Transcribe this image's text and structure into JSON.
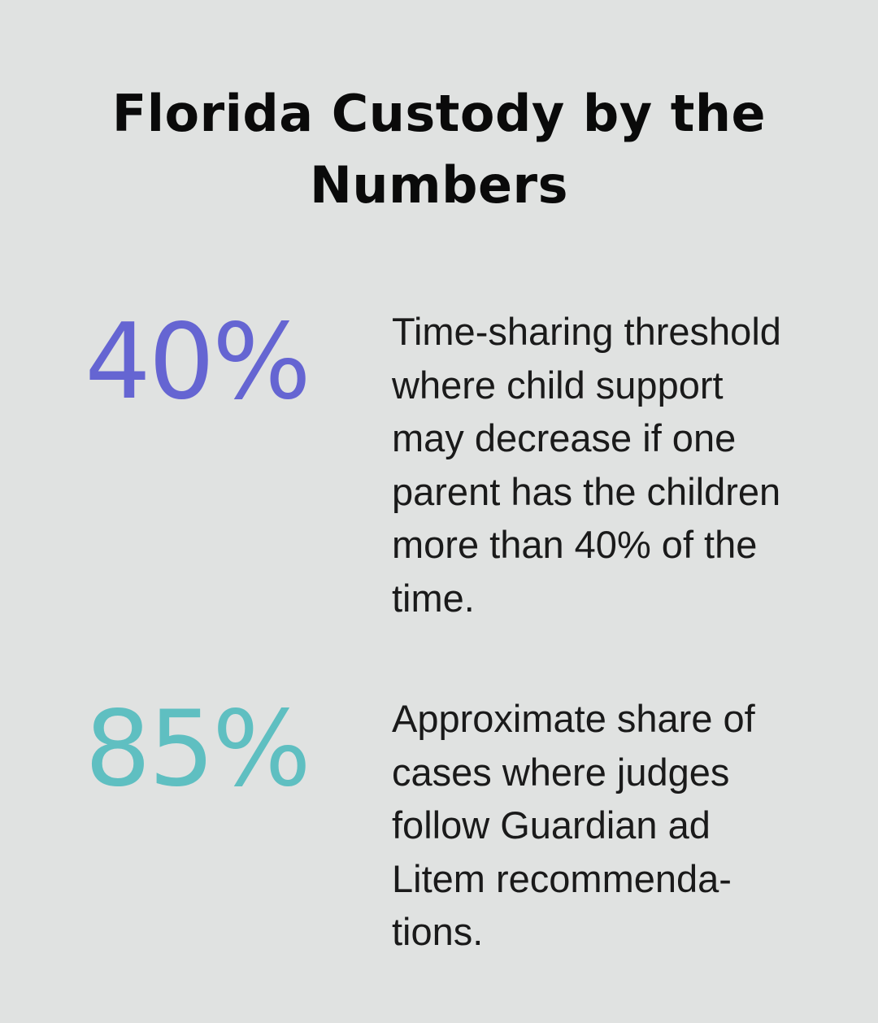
{
  "title": "Florida Custody by the\nNumbers",
  "stats": [
    {
      "value": "40%",
      "color": "#6565d2",
      "description": "Time-sharing threshold\nwhere child support\nmay decrease if one\nparent has the children\nmore than 40% of the\ntime."
    },
    {
      "value": "85%",
      "color": "#5fbfc1",
      "description": "Approximate share of\ncases where judges\nfollow Guardian ad\nLitem recommenda-\ntions."
    }
  ]
}
